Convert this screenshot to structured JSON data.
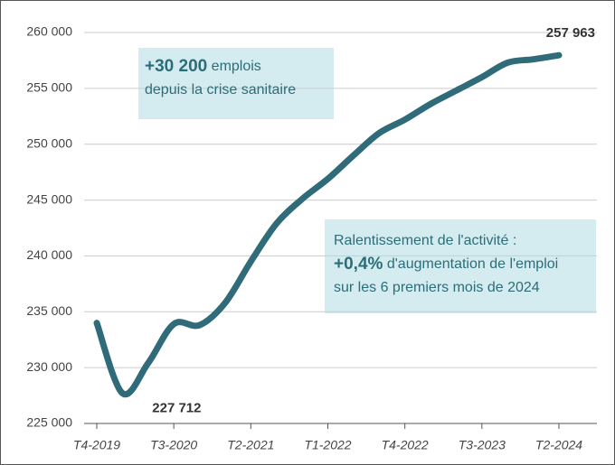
{
  "chart_data": {
    "type": "line",
    "categories": [
      "T4-2019",
      null,
      null,
      "T3-2020",
      null,
      null,
      "T2-2021",
      null,
      null,
      "T1-2022",
      null,
      null,
      "T4-2022",
      null,
      null,
      "T3-2023",
      null,
      null,
      "T2-2024"
    ],
    "series": [
      {
        "color": "#2f6b78",
        "values": [
          234000,
          227712,
          230400,
          233900,
          233800,
          235800,
          239500,
          242900,
          245100,
          246900,
          249000,
          251000,
          252200,
          253600,
          254800,
          256000,
          257300,
          257600,
          257963
        ],
        "value_labels": [
          null,
          "227 712",
          null,
          null,
          null,
          null,
          null,
          null,
          null,
          null,
          null,
          null,
          null,
          null,
          null,
          null,
          null,
          null,
          "257 963"
        ]
      }
    ],
    "ylim": [
      225000,
      260000
    ],
    "yticks": [
      {
        "value": 225000,
        "label": "225 000"
      },
      {
        "value": 230000,
        "label": "230 000"
      },
      {
        "value": 235000,
        "label": "235 000"
      },
      {
        "value": 240000,
        "label": "240 000"
      },
      {
        "value": 245000,
        "label": "245 000"
      },
      {
        "value": 250000,
        "label": "250 000"
      },
      {
        "value": 255000,
        "label": "255 000"
      },
      {
        "value": 260000,
        "label": "260 000"
      }
    ],
    "grid": true,
    "annotations": [
      {
        "lines": [
          [
            {
              "text": "+30 200",
              "bold": true
            },
            {
              "text": " emplois"
            }
          ],
          [
            {
              "text": "depuis la crise sanitaire"
            }
          ]
        ]
      },
      {
        "lines": [
          [
            {
              "text": "Ralentissement de l'activité :"
            }
          ],
          [
            {
              "text": "+0,4%",
              "bold": true
            },
            {
              "text": " d'augmentation de l'emploi"
            }
          ],
          [
            {
              "text": "sur les 6 premiers mois de 2024"
            }
          ]
        ]
      }
    ]
  }
}
